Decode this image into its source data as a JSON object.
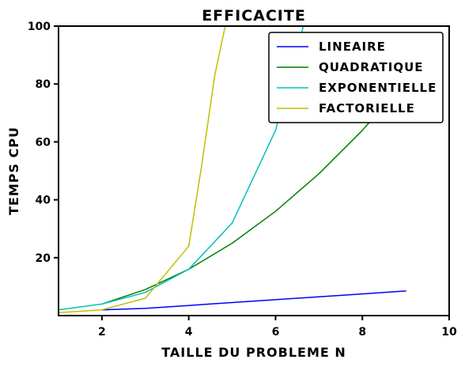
{
  "chart_data": {
    "type": "line",
    "title": "EFFICACITE",
    "xlabel": "TAILLE DU PROBLEME N",
    "ylabel": "TEMPS CPU",
    "xlim": [
      1,
      10
    ],
    "ylim": [
      0,
      100
    ],
    "xticks": [
      2,
      4,
      6,
      8,
      10
    ],
    "yticks": [
      20,
      40,
      60,
      80,
      100
    ],
    "grid": false,
    "legend_position": "top-right",
    "series": [
      {
        "name": "LINEAIRE",
        "color": "#0000ff",
        "x": [
          2.0,
          3.0,
          4.0,
          5.0,
          6.0,
          7.0,
          8.0,
          9.0
        ],
        "y": [
          2.0,
          2.5,
          3.5,
          4.5,
          5.5,
          6.5,
          7.5,
          8.5
        ]
      },
      {
        "name": "QUADRATIQUE",
        "color": "#008000",
        "x": [
          2.0,
          3.0,
          4.0,
          5.0,
          6.0,
          7.0,
          8.0,
          9.0
        ],
        "y": [
          4.0,
          9.0,
          16.0,
          25.0,
          36.0,
          49.0,
          64.0,
          81.0
        ]
      },
      {
        "name": "EXPONENTIELLE",
        "color": "#00bfbf",
        "x": [
          1.0,
          2.0,
          3.0,
          4.0,
          5.0,
          6.0,
          6.64
        ],
        "y": [
          2.0,
          4.0,
          8.0,
          16.0,
          32.0,
          64.0,
          100.0
        ]
      },
      {
        "name": "FACTORIELLE",
        "color": "#bfbf00",
        "x": [
          1.0,
          2.0,
          3.0,
          4.0,
          4.3,
          4.6,
          4.84
        ],
        "y": [
          1.0,
          2.0,
          6.0,
          24.0,
          52.0,
          83.0,
          100.0
        ]
      }
    ]
  }
}
